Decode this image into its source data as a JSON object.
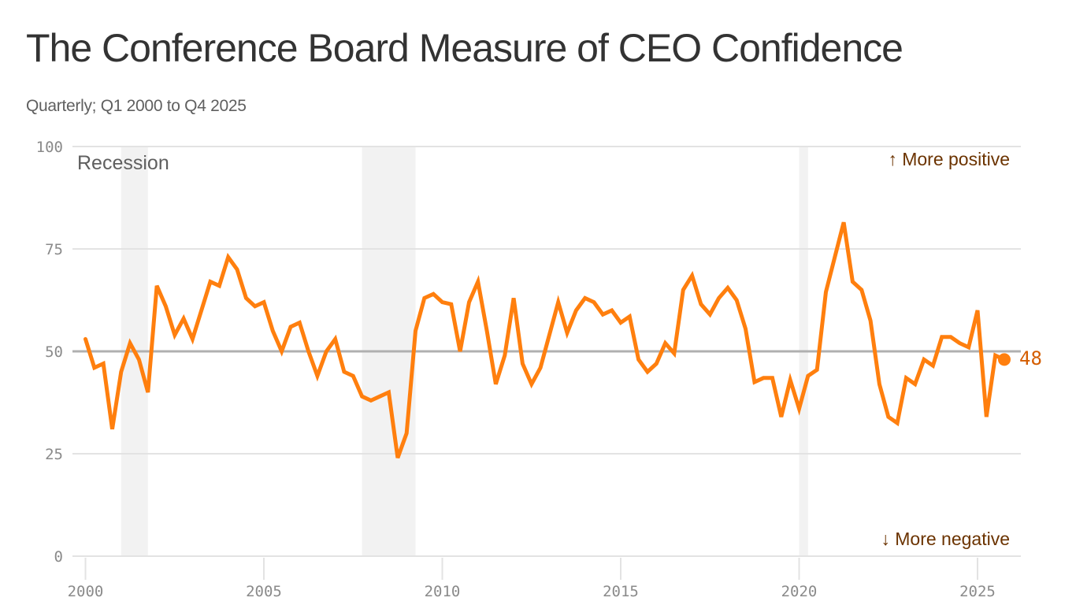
{
  "header": {
    "title": "The Conference Board Measure of CEO Confidence",
    "subtitle": "Quarterly; Q1 2000 to Q4 2025"
  },
  "colors": {
    "line": "#ff7f0e",
    "end_marker": "#ff7f0e",
    "end_label": "#d45d00",
    "recession_band": "#f2f2f2",
    "grid": "#e3e3e3",
    "reference_line": "#b0b0b0",
    "annotation": "#6b3300"
  },
  "chart_data": {
    "type": "line",
    "title": "The Conference Board Measure of CEO Confidence",
    "subtitle": "Quarterly; Q1 2000 to Q4 2025",
    "xlabel": "",
    "ylabel": "",
    "ylim": [
      0,
      100
    ],
    "xlim": [
      2000,
      2026.2
    ],
    "grid": true,
    "yticks": [
      0,
      25,
      50,
      75,
      100
    ],
    "ytick_labels": [
      "0",
      "25",
      "50",
      "75",
      "100"
    ],
    "xticks": [
      2000,
      2005,
      2010,
      2015,
      2020,
      2025
    ],
    "xtick_labels": [
      "2000",
      "2005",
      "2010",
      "2015",
      "2020",
      "2025"
    ],
    "reference_line": 50,
    "recessions": [
      {
        "start": 2001.0,
        "end": 2001.75
      },
      {
        "start": 2007.75,
        "end": 2009.25
      },
      {
        "start": 2020.0,
        "end": 2020.25
      }
    ],
    "recession_label": "Recession",
    "annotations": {
      "top": "↑ More positive",
      "bottom": "↓ More negative"
    },
    "end_label": "48",
    "series": [
      {
        "name": "CEO Confidence",
        "start": "Q1 2000",
        "frequency": "quarterly",
        "values": [
          53,
          46,
          47,
          31,
          45,
          52,
          48,
          40,
          66,
          61,
          54,
          58,
          53,
          60,
          67,
          66,
          73,
          70,
          63,
          61,
          62,
          55,
          50,
          56,
          57,
          50,
          44,
          50,
          53,
          45,
          44,
          39,
          38,
          39,
          40,
          24,
          30,
          55,
          63,
          64,
          62,
          61.5,
          50,
          62,
          67,
          55,
          42,
          49,
          63,
          47,
          42,
          46,
          54,
          62,
          54.5,
          60,
          63,
          62,
          59,
          60,
          57,
          58.5,
          48,
          45,
          47,
          52,
          49.5,
          65,
          68.5,
          61.5,
          59,
          63,
          65.5,
          62.5,
          55.5,
          42.5,
          43.5,
          43.5,
          34,
          43,
          36,
          44,
          45.5,
          64.5,
          73,
          81.5,
          67,
          65,
          57.5,
          42,
          34,
          32.5,
          43.5,
          42,
          48,
          46.5,
          53.5,
          53.5,
          52,
          51,
          60,
          34,
          49,
          48
        ]
      }
    ]
  }
}
